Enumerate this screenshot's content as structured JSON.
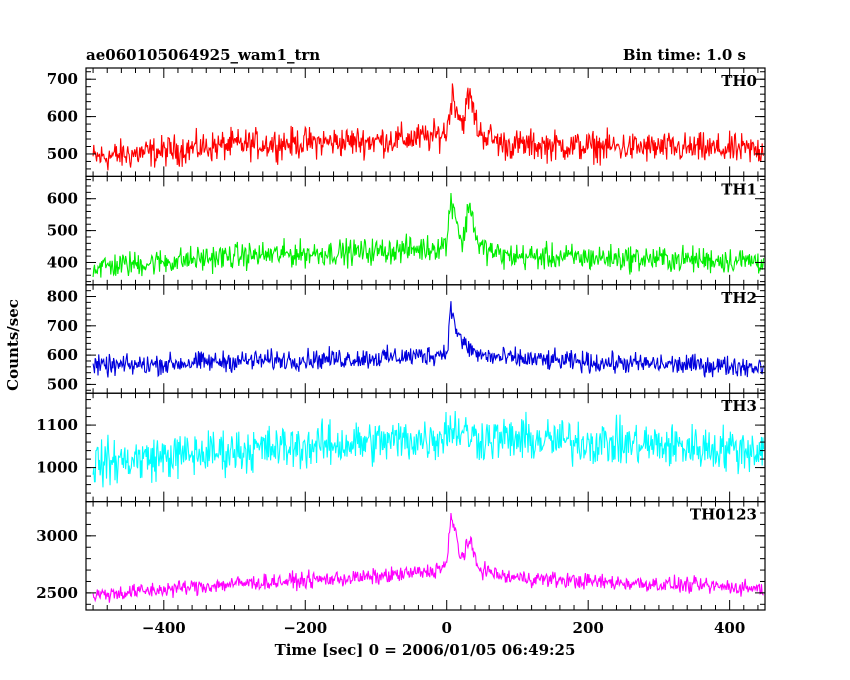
{
  "header": {
    "title": "ae060105064925_wam1_trn",
    "bin_time": "Bin time: 1.0 s"
  },
  "chart_data": {
    "type": "line",
    "xlabel": "Time [sec] 0 = 2006/01/05 06:49:25",
    "ylabel": "Counts/sec",
    "xlim": [
      -510,
      450
    ],
    "x_ticks": [
      -400,
      -200,
      0,
      200,
      400
    ],
    "x_tick_labels": [
      "−400",
      "−200",
      "0",
      "200",
      "400"
    ],
    "panels": [
      {
        "name": "TH0",
        "color": "#ff0000",
        "ylim": [
          440,
          730
        ],
        "y_ticks": [
          500,
          600,
          700
        ],
        "baseline": [
          [
            -500,
            490
          ],
          [
            -300,
            525
          ],
          [
            -100,
            535
          ],
          [
            -20,
            545
          ],
          [
            0,
            560
          ],
          [
            8,
            660
          ],
          [
            15,
            620
          ],
          [
            22,
            580
          ],
          [
            32,
            660
          ],
          [
            45,
            560
          ],
          [
            80,
            525
          ],
          [
            200,
            520
          ],
          [
            450,
            510
          ]
        ],
        "noise": 35
      },
      {
        "name": "TH1",
        "color": "#00ee00",
        "ylim": [
          330,
          670
        ],
        "y_ticks": [
          400,
          500,
          600
        ],
        "baseline": [
          [
            -500,
            385
          ],
          [
            -300,
            420
          ],
          [
            -100,
            435
          ],
          [
            -20,
            445
          ],
          [
            0,
            460
          ],
          [
            6,
            600
          ],
          [
            12,
            560
          ],
          [
            22,
            450
          ],
          [
            32,
            590
          ],
          [
            45,
            450
          ],
          [
            80,
            420
          ],
          [
            200,
            415
          ],
          [
            450,
            405
          ]
        ],
        "noise": 35
      },
      {
        "name": "TH2",
        "color": "#0000dd",
        "ylim": [
          470,
          840
        ],
        "y_ticks": [
          500,
          600,
          700,
          800
        ],
        "baseline": [
          [
            -500,
            560
          ],
          [
            -300,
            580
          ],
          [
            -100,
            590
          ],
          [
            -20,
            600
          ],
          [
            0,
            610
          ],
          [
            6,
            760
          ],
          [
            12,
            700
          ],
          [
            22,
            640
          ],
          [
            45,
            600
          ],
          [
            80,
            590
          ],
          [
            200,
            575
          ],
          [
            450,
            560
          ]
        ],
        "noise": 30
      },
      {
        "name": "TH3",
        "color": "#00ffff",
        "ylim": [
          920,
          1175
        ],
        "y_ticks": [
          1000,
          1100
        ],
        "baseline": [
          [
            -500,
            1010
          ],
          [
            -300,
            1040
          ],
          [
            -100,
            1060
          ],
          [
            -10,
            1070
          ],
          [
            0,
            1090
          ],
          [
            15,
            1090
          ],
          [
            40,
            1070
          ],
          [
            200,
            1060
          ],
          [
            450,
            1040
          ]
        ],
        "noise": 45
      },
      {
        "name": "TH0123",
        "color": "#ff00ff",
        "ylim": [
          2350,
          3300
        ],
        "y_ticks": [
          2500,
          3000
        ],
        "baseline": [
          [
            -500,
            2480
          ],
          [
            -300,
            2580
          ],
          [
            -100,
            2640
          ],
          [
            -20,
            2690
          ],
          [
            0,
            2750
          ],
          [
            6,
            3150
          ],
          [
            12,
            3050
          ],
          [
            20,
            2800
          ],
          [
            32,
            2950
          ],
          [
            45,
            2720
          ],
          [
            80,
            2640
          ],
          [
            200,
            2600
          ],
          [
            450,
            2540
          ]
        ],
        "noise": 60
      }
    ]
  }
}
